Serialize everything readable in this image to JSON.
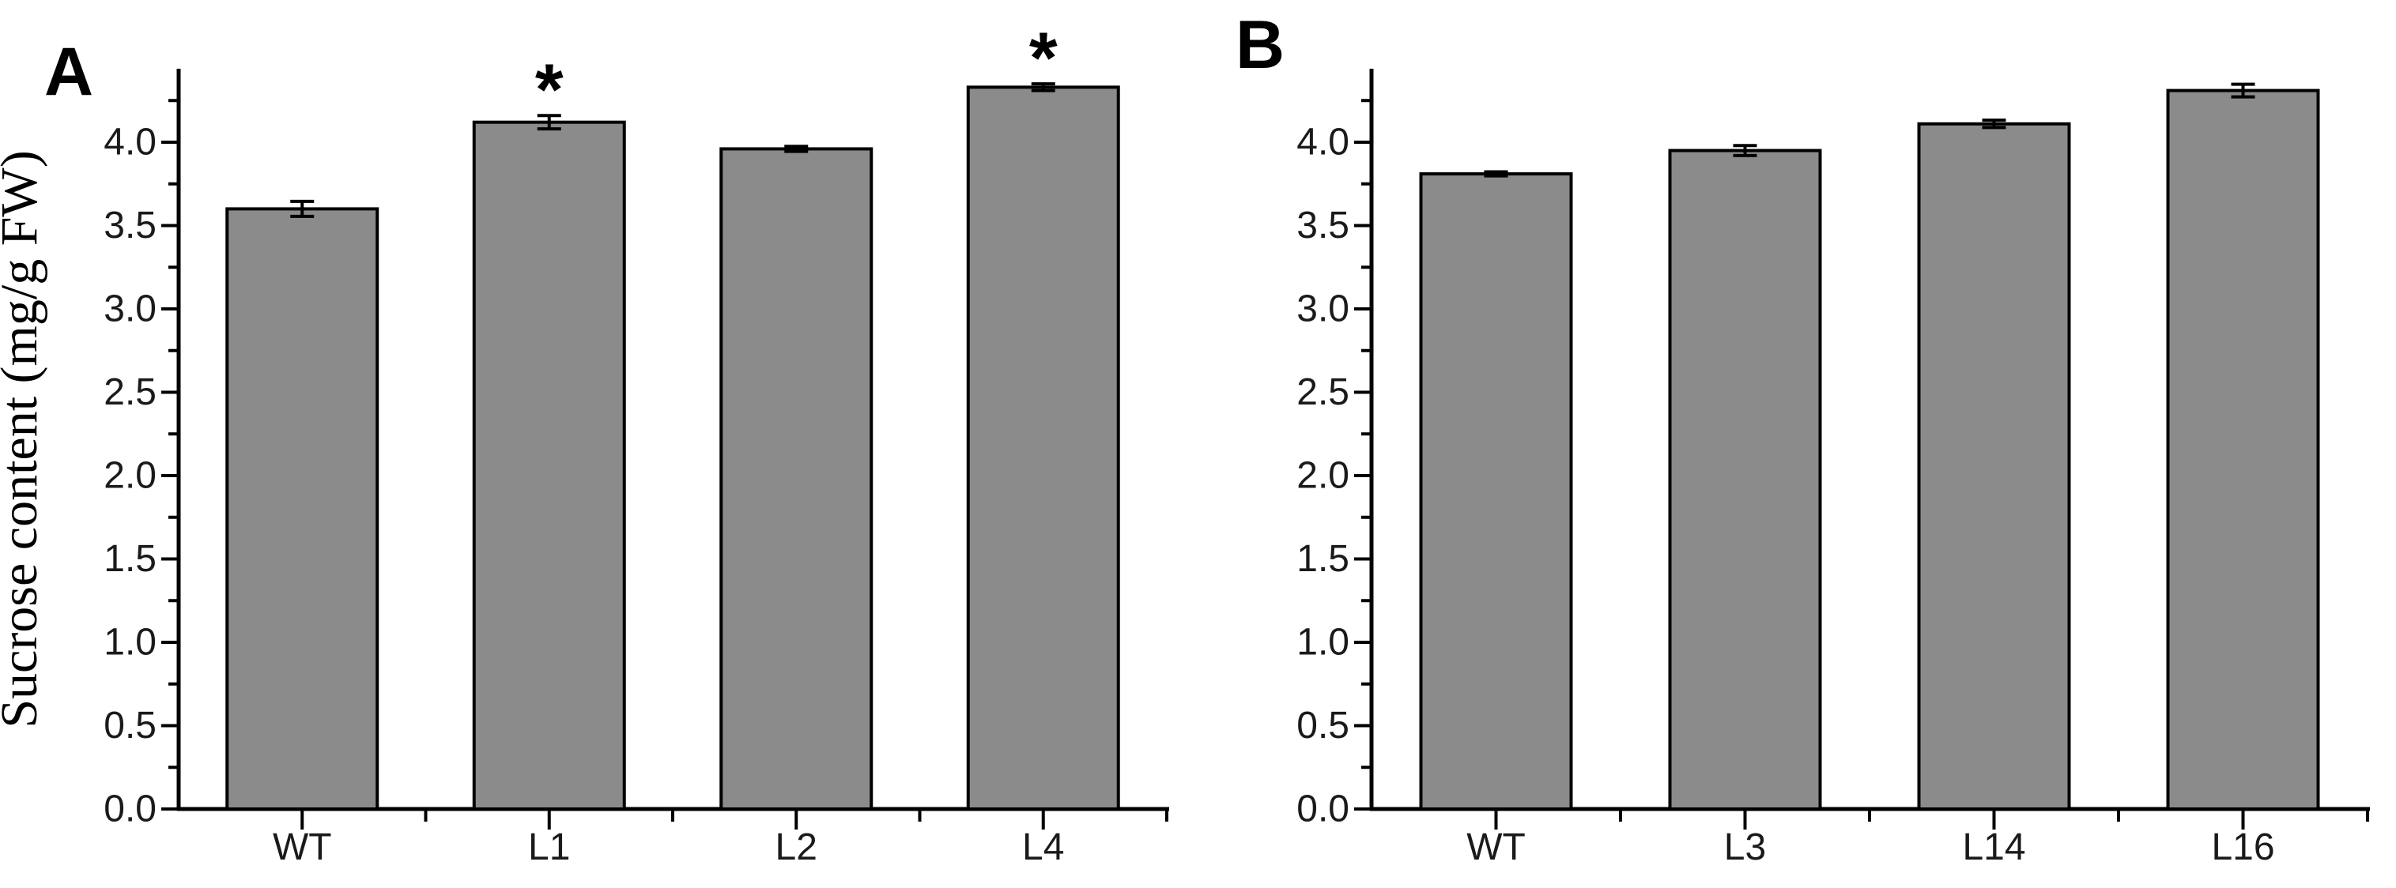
{
  "figure": {
    "ylabel": "Sucrose content (mg/g FW)",
    "background": "#ffffff",
    "bar_fill": "#8b8b8b",
    "bar_stroke": "#000000",
    "axis_color": "#000000",
    "significance_marker": "*"
  },
  "chart_data": [
    {
      "type": "bar",
      "panel_label": "A",
      "title": "",
      "xlabel": "",
      "ylabel": "Sucrose content (mg/g FW)",
      "categories": [
        "WT",
        "L1",
        "L2",
        "L4"
      ],
      "values": [
        3.6,
        4.12,
        3.96,
        4.33
      ],
      "errors": [
        0.045,
        0.04,
        0.015,
        0.02
      ],
      "significant": [
        false,
        true,
        false,
        true
      ],
      "ylim": [
        0,
        4.44
      ],
      "ytick_major_step": 0.5,
      "ytick_minor_step": 0.25,
      "ytick_labels": [
        "0.0",
        "0.5",
        "1.0",
        "1.5",
        "2.0",
        "2.5",
        "3.0",
        "3.5",
        "4.0"
      ],
      "grid": false,
      "legend": "none"
    },
    {
      "type": "bar",
      "panel_label": "B",
      "title": "",
      "xlabel": "",
      "ylabel": "",
      "categories": [
        "WT",
        "L3",
        "L14",
        "L16"
      ],
      "values": [
        3.81,
        3.95,
        4.11,
        4.31
      ],
      "errors": [
        0.012,
        0.03,
        0.022,
        0.038
      ],
      "significant": [
        false,
        false,
        false,
        false
      ],
      "ylim": [
        0,
        4.44
      ],
      "ytick_major_step": 0.5,
      "ytick_minor_step": 0.25,
      "ytick_labels": [
        "0.0",
        "0.5",
        "1.0",
        "1.5",
        "2.0",
        "2.5",
        "3.0",
        "3.5",
        "4.0"
      ],
      "grid": false,
      "legend": "none"
    }
  ]
}
